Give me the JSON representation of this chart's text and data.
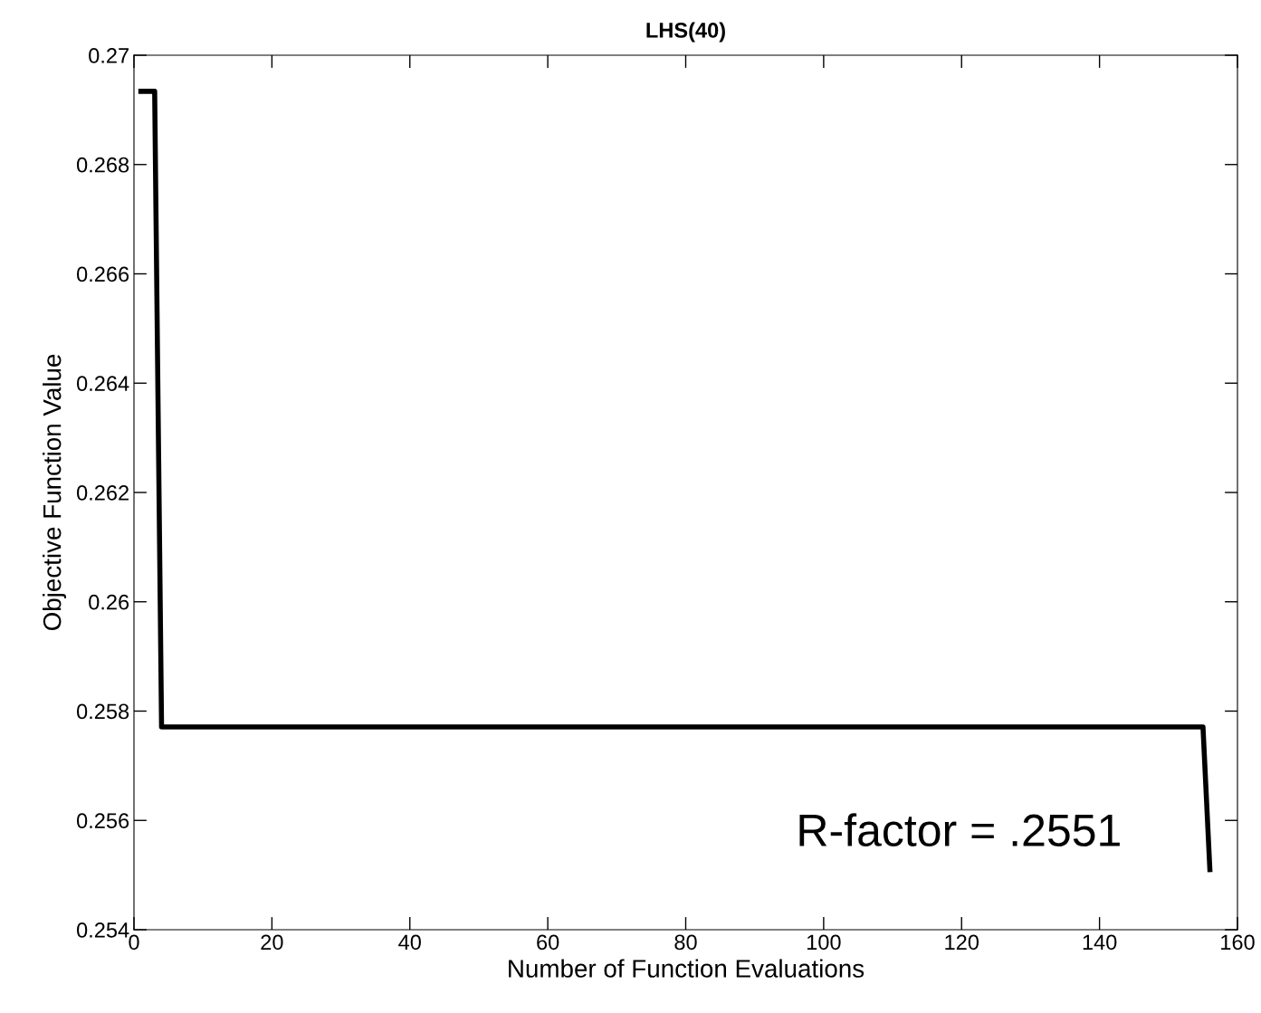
{
  "chart_data": {
    "type": "line",
    "title": "LHS(40)",
    "xlabel": "Number of Function Evaluations",
    "ylabel": "Objective Function Value",
    "x": [
      1,
      3,
      4,
      155,
      156
    ],
    "series": [
      {
        "color": "#000000",
        "values": [
          0.26934,
          0.26934,
          0.25771,
          0.25771,
          0.2551
        ]
      }
    ],
    "xlim": [
      0,
      160
    ],
    "xticks": [
      0,
      20,
      40,
      60,
      80,
      100,
      120,
      140,
      160
    ],
    "ylim": [
      0.254,
      0.27
    ],
    "yticks": [
      {
        "value": 0.254,
        "label": "0.254"
      },
      {
        "value": 0.256,
        "label": "0.256"
      },
      {
        "value": 0.258,
        "label": "0.258"
      },
      {
        "value": 0.26,
        "label": "0.26"
      },
      {
        "value": 0.262,
        "label": "0.262"
      },
      {
        "value": 0.264,
        "label": "0.264"
      },
      {
        "value": 0.266,
        "label": "0.266"
      },
      {
        "value": 0.268,
        "label": "0.268"
      },
      {
        "value": 0.27,
        "label": "0.27"
      }
    ],
    "annotations": [
      "R-factor = .2551"
    ],
    "grid": false,
    "legend": false,
    "marker": "none",
    "line_style": "solid"
  }
}
